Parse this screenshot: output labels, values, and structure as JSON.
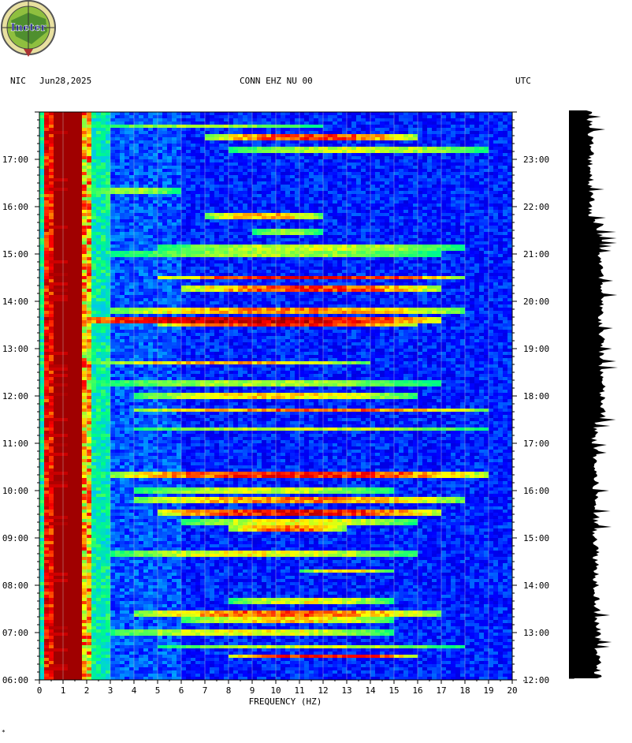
{
  "header": {
    "network": "NIC",
    "date": "Jun28,2025",
    "channel": "CONN EHZ NU 00",
    "timezone": "UTC"
  },
  "logo": {
    "text": "Ineter"
  },
  "footnote": "*",
  "chart_data": {
    "type": "heatmap",
    "title": "CONN EHZ NU 00",
    "xlabel": "FREQUENCY (HZ)",
    "xlim": [
      0,
      20
    ],
    "x_ticks": [
      "0",
      "1",
      "2",
      "3",
      "4",
      "5",
      "6",
      "7",
      "8",
      "9",
      "10",
      "11",
      "12",
      "13",
      "14",
      "15",
      "16",
      "17",
      "18",
      "19",
      "20"
    ],
    "left_time_ticks": [
      {
        "label": "06:00",
        "hour": 6
      },
      {
        "label": "07:00",
        "hour": 7
      },
      {
        "label": "08:00",
        "hour": 8
      },
      {
        "label": "09:00",
        "hour": 9
      },
      {
        "label": "10:00",
        "hour": 10
      },
      {
        "label": "11:00",
        "hour": 11
      },
      {
        "label": "12:00",
        "hour": 12
      },
      {
        "label": "13:00",
        "hour": 13
      },
      {
        "label": "14:00",
        "hour": 14
      },
      {
        "label": "15:00",
        "hour": 15
      },
      {
        "label": "16:00",
        "hour": 16
      },
      {
        "label": "17:00",
        "hour": 17
      }
    ],
    "right_time_ticks": [
      {
        "label": "12:00",
        "hour": 6
      },
      {
        "label": "13:00",
        "hour": 7
      },
      {
        "label": "14:00",
        "hour": 8
      },
      {
        "label": "15:00",
        "hour": 9
      },
      {
        "label": "16:00",
        "hour": 10
      },
      {
        "label": "17:00",
        "hour": 11
      },
      {
        "label": "18:00",
        "hour": 12
      },
      {
        "label": "19:00",
        "hour": 13
      },
      {
        "label": "20:00",
        "hour": 14
      },
      {
        "label": "21:00",
        "hour": 15
      },
      {
        "label": "22:00",
        "hour": 16
      },
      {
        "label": "23:00",
        "hour": 17
      }
    ],
    "time_range_hours": [
      6,
      18
    ],
    "colormap": [
      "#00008b",
      "#0000ff",
      "#00bfff",
      "#00ff80",
      "#ffff00",
      "#ff0000",
      "#8b0000"
    ],
    "low_freq_band_hz": [
      0.3,
      2.2
    ],
    "events": [
      {
        "hour": 6.5,
        "freq": [
          8,
          16
        ],
        "strength": 0.9
      },
      {
        "hour": 6.7,
        "freq": [
          5,
          18
        ],
        "strength": 0.5
      },
      {
        "hour": 7.0,
        "freq": [
          3,
          15
        ],
        "strength": 0.55
      },
      {
        "hour": 7.25,
        "freq": [
          6,
          15
        ],
        "strength": 0.6
      },
      {
        "hour": 7.4,
        "freq": [
          4,
          17
        ],
        "strength": 0.75
      },
      {
        "hour": 7.65,
        "freq": [
          8,
          15
        ],
        "strength": 0.55
      },
      {
        "hour": 8.3,
        "freq": [
          11,
          15
        ],
        "strength": 0.6
      },
      {
        "hour": 8.65,
        "freq": [
          3,
          16
        ],
        "strength": 0.55
      },
      {
        "hour": 9.2,
        "freq": [
          8,
          13
        ],
        "strength": 0.75
      },
      {
        "hour": 9.35,
        "freq": [
          6,
          16
        ],
        "strength": 0.55
      },
      {
        "hour": 9.55,
        "freq": [
          5,
          17
        ],
        "strength": 0.9
      },
      {
        "hour": 9.8,
        "freq": [
          4,
          18
        ],
        "strength": 0.7
      },
      {
        "hour": 10.0,
        "freq": [
          4,
          15
        ],
        "strength": 0.5
      },
      {
        "hour": 10.35,
        "freq": [
          3,
          19
        ],
        "strength": 0.85
      },
      {
        "hour": 11.3,
        "freq": [
          4,
          19
        ],
        "strength": 0.5
      },
      {
        "hour": 11.7,
        "freq": [
          4,
          19
        ],
        "strength": 0.75
      },
      {
        "hour": 12.0,
        "freq": [
          4,
          16
        ],
        "strength": 0.6
      },
      {
        "hour": 12.25,
        "freq": [
          2,
          17
        ],
        "strength": 0.45
      },
      {
        "hour": 12.7,
        "freq": [
          2,
          14
        ],
        "strength": 0.65
      },
      {
        "hour": 13.5,
        "freq": [
          5,
          16
        ],
        "strength": 0.85
      },
      {
        "hour": 13.62,
        "freq": [
          0.2,
          17
        ],
        "strength": 1.0
      },
      {
        "hour": 13.8,
        "freq": [
          3,
          18
        ],
        "strength": 0.7
      },
      {
        "hour": 14.25,
        "freq": [
          6,
          17
        ],
        "strength": 0.8
      },
      {
        "hour": 14.5,
        "freq": [
          5,
          18
        ],
        "strength": 0.9
      },
      {
        "hour": 15.0,
        "freq": [
          3,
          17
        ],
        "strength": 0.45
      },
      {
        "hour": 15.15,
        "freq": [
          5,
          18
        ],
        "strength": 0.5
      },
      {
        "hour": 15.45,
        "freq": [
          9,
          12
        ],
        "strength": 0.45
      },
      {
        "hour": 15.8,
        "freq": [
          7,
          12
        ],
        "strength": 0.65
      },
      {
        "hour": 16.35,
        "freq": [
          2,
          6
        ],
        "strength": 0.45
      },
      {
        "hour": 17.2,
        "freq": [
          8,
          19
        ],
        "strength": 0.5
      },
      {
        "hour": 17.45,
        "freq": [
          7,
          16
        ],
        "strength": 0.8
      },
      {
        "hour": 17.7,
        "freq": [
          2,
          12
        ],
        "strength": 0.45
      }
    ]
  }
}
